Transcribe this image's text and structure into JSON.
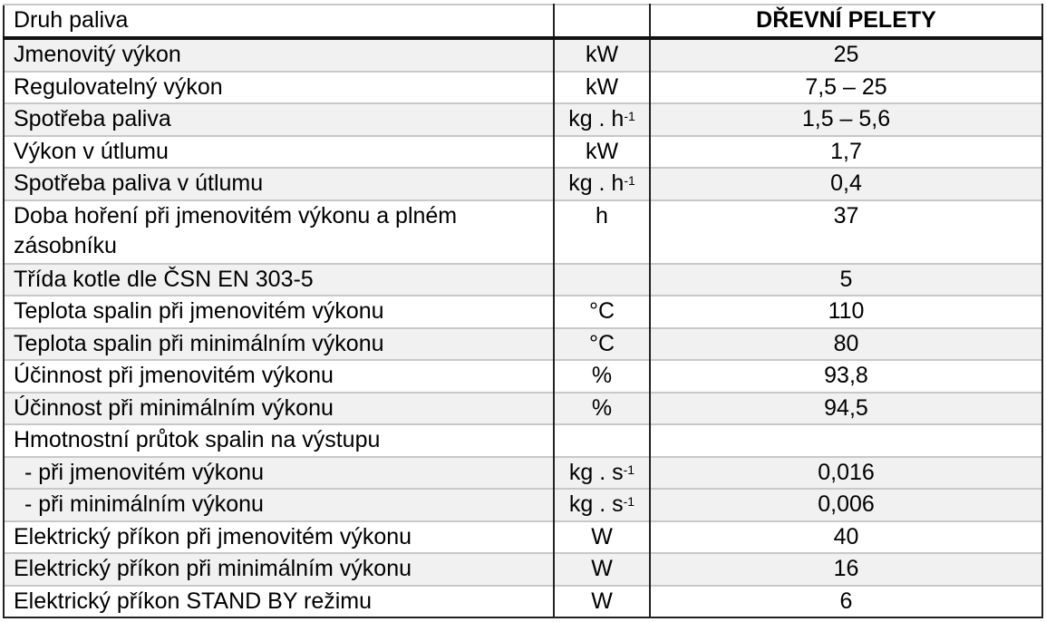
{
  "header": {
    "param": "Druh paliva",
    "unit": "",
    "value": "DŘEVNÍ PELETY"
  },
  "rows": [
    {
      "param": "Jmenovitý výkon",
      "unit": "kW",
      "sup": "",
      "value": "25",
      "shaded": true
    },
    {
      "param": "Regulovatelný výkon",
      "unit": "kW",
      "sup": "",
      "value": "7,5 – 25",
      "shaded": false
    },
    {
      "param": "Spotřeba paliva",
      "unit": "kg . h",
      "sup": "-1",
      "value": "1,5 – 5,6",
      "shaded": true
    },
    {
      "param": "Výkon v útlumu",
      "unit": "kW",
      "sup": "",
      "value": "1,7",
      "shaded": false
    },
    {
      "param": "Spotřeba paliva v útlumu",
      "unit": "kg . h",
      "sup": "-1",
      "value": "0,4",
      "shaded": true
    },
    {
      "param": "Doba hoření při jmenovitém výkonu a plném zásobníku",
      "unit": "h",
      "sup": "",
      "value": "37",
      "shaded": false,
      "tall": true
    },
    {
      "param": "Třída kotle dle ČSN EN 303-5",
      "unit": "",
      "sup": "",
      "value": "5",
      "shaded": true
    },
    {
      "param": "Teplota spalin při jmenovitém výkonu",
      "unit": "°C",
      "sup": "",
      "value": "110",
      "shaded": false
    },
    {
      "param": "Teplota spalin při minimálním výkonu",
      "unit": "°C",
      "sup": "",
      "value": "80",
      "shaded": true
    },
    {
      "param": "Účinnost při jmenovitém výkonu",
      "unit": "%",
      "sup": "",
      "value": "93,8",
      "shaded": false
    },
    {
      "param": "Účinnost při minimálním výkonu",
      "unit": "%",
      "sup": "",
      "value": "94,5",
      "shaded": true
    },
    {
      "param": "Hmotnostní průtok spalin na výstupu",
      "unit": "",
      "sup": "",
      "value": "",
      "shaded": false
    },
    {
      "param": "- při jmenovitém výkonu",
      "unit": "kg . s",
      "sup": "-1",
      "value": "0,016",
      "shaded": true,
      "indent": true
    },
    {
      "param": "- při minimálním výkonu",
      "unit": "kg . s",
      "sup": "-1",
      "value": "0,006",
      "shaded": true,
      "indent": true
    },
    {
      "param": "Elektrický příkon při jmenovitém výkonu",
      "unit": "W",
      "sup": "",
      "value": "40",
      "shaded": false
    },
    {
      "param": "Elektrický příkon při minimálním výkonu",
      "unit": "W",
      "sup": "",
      "value": "16",
      "shaded": true
    },
    {
      "param": "Elektrický příkon STAND BY režimu",
      "unit": "W",
      "sup": "",
      "value": "6",
      "shaded": false
    }
  ]
}
